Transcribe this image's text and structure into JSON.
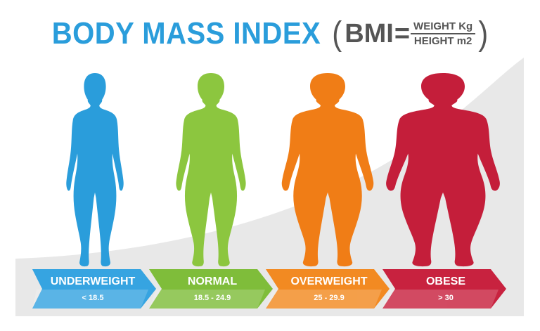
{
  "title": "BODY MASS INDEX",
  "formula": {
    "open": "(",
    "label": "BMI",
    "equals": "=",
    "numerator": "WEIGHT Kg",
    "denominator": "HEIGHT m2",
    "close": ")"
  },
  "categories": [
    {
      "name": "UNDERWEIGHT",
      "range": "< 18.5",
      "color": "#2a9ddb",
      "arrow_color": "#3fa8e4"
    },
    {
      "name": "NORMAL",
      "range": "18.5 - 24.9",
      "color": "#8cc63f",
      "arrow_color": "#7fbd3a"
    },
    {
      "name": "OVERWEIGHT",
      "range": "25 - 29.9",
      "color": "#f07d16",
      "arrow_color": "#f28a22"
    },
    {
      "name": "OBESE",
      "range": "> 30",
      "color": "#c41e3a",
      "arrow_color": "#c8223f"
    }
  ],
  "colors": {
    "title": "#2a9ddb",
    "formula": "#555555",
    "backdrop": "#e8e8e8"
  }
}
